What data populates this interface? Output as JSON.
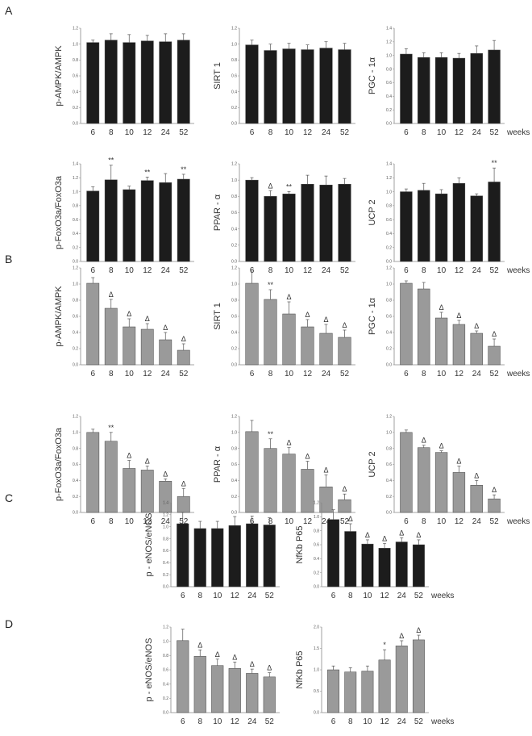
{
  "figure": {
    "panel_letters": [
      "A",
      "B",
      "C",
      "D"
    ],
    "x_unit_label": "weeks",
    "colors": {
      "black_bars": "#1c1c1c",
      "gray_bars": "#9a9a9a",
      "axis": "#888888",
      "error": "#555555"
    }
  },
  "chart_data": [
    {
      "type": "bar",
      "group": "A",
      "ylabel": "p-AMPK/AMPK",
      "categories": [
        "6",
        "8",
        "10",
        "12",
        "24",
        "52"
      ],
      "values": [
        1.02,
        1.05,
        1.02,
        1.04,
        1.03,
        1.05
      ],
      "errors": [
        0.03,
        0.08,
        0.1,
        0.07,
        0.1,
        0.08
      ],
      "annotations": [
        "",
        "",
        "",
        "",
        "",
        ""
      ],
      "ylim": [
        0,
        1.2
      ],
      "yticks": [
        "0.0",
        "0.2",
        "0.4",
        "0.6",
        "0.8",
        "1.0",
        "1.2"
      ],
      "style": "black"
    },
    {
      "type": "bar",
      "group": "A",
      "ylabel": "SIRT 1",
      "categories": [
        "6",
        "8",
        "10",
        "12",
        "24",
        "52"
      ],
      "values": [
        0.99,
        0.92,
        0.94,
        0.93,
        0.95,
        0.93
      ],
      "errors": [
        0.06,
        0.08,
        0.07,
        0.06,
        0.08,
        0.08
      ],
      "annotations": [
        "",
        "",
        "",
        "",
        "",
        ""
      ],
      "ylim": [
        0,
        1.2
      ],
      "yticks": [
        "0.0",
        "0.2",
        "0.4",
        "0.6",
        "0.8",
        "1.0",
        "1.2"
      ],
      "style": "black"
    },
    {
      "type": "bar",
      "group": "A",
      "ylabel": "PGC - 1α",
      "categories": [
        "6",
        "8",
        "10",
        "12",
        "24",
        "52"
      ],
      "values": [
        1.02,
        0.97,
        0.97,
        0.96,
        1.03,
        1.08
      ],
      "errors": [
        0.08,
        0.07,
        0.07,
        0.07,
        0.11,
        0.14
      ],
      "annotations": [
        "",
        "",
        "",
        "",
        "",
        ""
      ],
      "ylim": [
        0,
        1.4
      ],
      "yticks": [
        "0.0",
        "0.2",
        "0.4",
        "0.6",
        "0.8",
        "1.0",
        "1.2",
        "1.4"
      ],
      "style": "black",
      "xunit": true
    },
    {
      "type": "bar",
      "group": "A",
      "ylabel": "p-FoxO3a/FoxO3a",
      "categories": [
        "6",
        "8",
        "10",
        "12",
        "24",
        "52"
      ],
      "values": [
        1.01,
        1.17,
        1.03,
        1.16,
        1.13,
        1.18
      ],
      "errors": [
        0.06,
        0.21,
        0.05,
        0.05,
        0.13,
        0.07
      ],
      "annotations": [
        "",
        "**",
        "",
        "**",
        "",
        "**"
      ],
      "ylim": [
        0,
        1.4
      ],
      "yticks": [
        "0.0",
        "0.2",
        "0.4",
        "0.6",
        "0.8",
        "1.0",
        "1.2",
        "1.4"
      ],
      "style": "black"
    },
    {
      "type": "bar",
      "group": "A",
      "ylabel": "PPAR - α",
      "categories": [
        "6",
        "8",
        "10",
        "12",
        "24",
        "52"
      ],
      "values": [
        1.0,
        0.8,
        0.83,
        0.95,
        0.94,
        0.95
      ],
      "errors": [
        0.03,
        0.07,
        0.03,
        0.11,
        0.11,
        0.07
      ],
      "annotations": [
        "",
        "Δ",
        "**",
        "",
        "",
        ""
      ],
      "ylim": [
        0,
        1.2
      ],
      "yticks": [
        "0.0",
        "0.2",
        "0.4",
        "0.6",
        "0.8",
        "1.0",
        "1.2"
      ],
      "style": "black"
    },
    {
      "type": "bar",
      "group": "A",
      "ylabel": "UCP 2",
      "categories": [
        "6",
        "8",
        "10",
        "12",
        "24",
        "52"
      ],
      "values": [
        1.0,
        1.02,
        0.97,
        1.12,
        0.94,
        1.14
      ],
      "errors": [
        0.04,
        0.1,
        0.06,
        0.08,
        0.03,
        0.2
      ],
      "annotations": [
        "",
        "",
        "",
        "",
        "",
        "**"
      ],
      "ylim": [
        0,
        1.4
      ],
      "yticks": [
        "0.0",
        "0.2",
        "0.4",
        "0.6",
        "0.8",
        "1.0",
        "1.2",
        "1.4"
      ],
      "style": "black",
      "xunit": true
    },
    {
      "type": "bar",
      "group": "B",
      "ylabel": "p-AMPK/AMPK",
      "categories": [
        "6",
        "8",
        "10",
        "12",
        "24",
        "52"
      ],
      "values": [
        1.01,
        0.7,
        0.47,
        0.44,
        0.31,
        0.18
      ],
      "errors": [
        0.07,
        0.11,
        0.1,
        0.07,
        0.09,
        0.08
      ],
      "annotations": [
        "",
        "Δ",
        "Δ",
        "Δ",
        "Δ",
        "Δ"
      ],
      "ylim": [
        0,
        1.2
      ],
      "yticks": [
        "0.0",
        "0.2",
        "0.4",
        "0.6",
        "0.8",
        "1.0",
        "1.2"
      ],
      "style": "gray"
    },
    {
      "type": "bar",
      "group": "B",
      "ylabel": "SIRT 1",
      "categories": [
        "6",
        "8",
        "10",
        "12",
        "24",
        "52"
      ],
      "values": [
        1.01,
        0.81,
        0.63,
        0.47,
        0.39,
        0.34
      ],
      "errors": [
        0.17,
        0.12,
        0.15,
        0.09,
        0.11,
        0.09
      ],
      "annotations": [
        "",
        "**",
        "Δ",
        "Δ",
        "Δ",
        "Δ"
      ],
      "ylim": [
        0,
        1.2
      ],
      "yticks": [
        "0.0",
        "0.2",
        "0.4",
        "0.6",
        "0.8",
        "1.0",
        "1.2"
      ],
      "style": "gray"
    },
    {
      "type": "bar",
      "group": "B",
      "ylabel": "PGC - 1α",
      "categories": [
        "6",
        "8",
        "10",
        "12",
        "24",
        "52"
      ],
      "values": [
        1.01,
        0.94,
        0.58,
        0.5,
        0.39,
        0.23
      ],
      "errors": [
        0.03,
        0.08,
        0.07,
        0.05,
        0.03,
        0.09
      ],
      "annotations": [
        "",
        "",
        "Δ",
        "Δ",
        "Δ",
        "Δ"
      ],
      "ylim": [
        0,
        1.2
      ],
      "yticks": [
        "0.0",
        "0.2",
        "0.4",
        "0.6",
        "0.8",
        "1.0",
        "1.2"
      ],
      "style": "gray",
      "xunit": true
    },
    {
      "type": "bar",
      "group": "B",
      "ylabel": "p-FoxO3a/FoxO3a",
      "categories": [
        "6",
        "8",
        "10",
        "12",
        "24",
        "52"
      ],
      "values": [
        1.0,
        0.89,
        0.55,
        0.53,
        0.39,
        0.2
      ],
      "errors": [
        0.04,
        0.11,
        0.1,
        0.05,
        0.03,
        0.1
      ],
      "annotations": [
        "",
        "**",
        "Δ",
        "Δ",
        "Δ",
        "Δ"
      ],
      "ylim": [
        0,
        1.2
      ],
      "yticks": [
        "0.0",
        "0.2",
        "0.4",
        "0.6",
        "0.8",
        "1.0",
        "1.2"
      ],
      "style": "gray"
    },
    {
      "type": "bar",
      "group": "B",
      "ylabel": "PPAR - α",
      "categories": [
        "6",
        "8",
        "10",
        "12",
        "24",
        "52"
      ],
      "values": [
        1.01,
        0.8,
        0.73,
        0.54,
        0.32,
        0.16
      ],
      "errors": [
        0.14,
        0.12,
        0.08,
        0.1,
        0.15,
        0.07
      ],
      "annotations": [
        "",
        "**",
        "Δ",
        "Δ",
        "Δ",
        "Δ"
      ],
      "ylim": [
        0,
        1.2
      ],
      "yticks": [
        "0.0",
        "0.2",
        "0.4",
        "0.6",
        "0.8",
        "1.0",
        "1.2"
      ],
      "style": "gray"
    },
    {
      "type": "bar",
      "group": "B",
      "ylabel": "UCP 2",
      "categories": [
        "6",
        "8",
        "10",
        "12",
        "24",
        "52"
      ],
      "values": [
        1.0,
        0.81,
        0.75,
        0.5,
        0.34,
        0.17
      ],
      "errors": [
        0.03,
        0.03,
        0.02,
        0.08,
        0.06,
        0.05
      ],
      "annotations": [
        "",
        "Δ",
        "Δ",
        "Δ",
        "Δ",
        "Δ"
      ],
      "ylim": [
        0,
        1.2
      ],
      "yticks": [
        "0.0",
        "0.2",
        "0.4",
        "0.6",
        "0.8",
        "1.0",
        "1.2"
      ],
      "style": "gray",
      "xunit": true
    },
    {
      "type": "bar",
      "group": "C",
      "ylabel": "p - eNOS/eNOS",
      "categories": [
        "6",
        "8",
        "10",
        "12",
        "24",
        "52"
      ],
      "values": [
        1.05,
        0.97,
        0.97,
        1.02,
        1.05,
        1.03
      ],
      "errors": [
        0.19,
        0.12,
        0.12,
        0.15,
        0.13,
        0.12
      ],
      "annotations": [
        "",
        "",
        "",
        "",
        "",
        ""
      ],
      "ylim": [
        0,
        1.4
      ],
      "yticks": [
        "0.0",
        "0.2",
        "0.4",
        "0.6",
        "0.8",
        "1.0",
        "1.2",
        "1.4"
      ],
      "style": "black"
    },
    {
      "type": "bar",
      "group": "C",
      "ylabel": "NfKb P65",
      "categories": [
        "6",
        "8",
        "10",
        "12",
        "24",
        "52"
      ],
      "values": [
        0.96,
        0.79,
        0.61,
        0.55,
        0.64,
        0.6
      ],
      "errors": [
        0.14,
        0.11,
        0.06,
        0.07,
        0.06,
        0.07
      ],
      "annotations": [
        "",
        "Δ",
        "Δ",
        "Δ",
        "Δ",
        "Δ"
      ],
      "ylim": [
        0,
        1.2
      ],
      "yticks": [
        "0.0",
        "0.2",
        "0.4",
        "0.6",
        "0.8",
        "1.0",
        "1.2"
      ],
      "style": "black",
      "xunit": true
    },
    {
      "type": "bar",
      "group": "D",
      "ylabel": "p - eNOS/eNOS",
      "categories": [
        "6",
        "8",
        "10",
        "12",
        "24",
        "52"
      ],
      "values": [
        1.01,
        0.79,
        0.66,
        0.62,
        0.55,
        0.5
      ],
      "errors": [
        0.16,
        0.09,
        0.09,
        0.09,
        0.06,
        0.06
      ],
      "annotations": [
        "",
        "Δ",
        "Δ",
        "Δ",
        "Δ",
        "Δ"
      ],
      "ylim": [
        0,
        1.2
      ],
      "yticks": [
        "0.0",
        "0.2",
        "0.4",
        "0.6",
        "0.8",
        "1.0",
        "1.2"
      ],
      "style": "gray"
    },
    {
      "type": "bar",
      "group": "D",
      "ylabel": "NfKb P65",
      "categories": [
        "6",
        "8",
        "10",
        "12",
        "24",
        "52"
      ],
      "values": [
        1.0,
        0.95,
        0.97,
        1.23,
        1.56,
        1.7
      ],
      "errors": [
        0.09,
        0.1,
        0.12,
        0.24,
        0.12,
        0.11
      ],
      "annotations": [
        "",
        "",
        "",
        "*",
        "Δ",
        "Δ"
      ],
      "ylim": [
        0,
        2.0
      ],
      "yticks": [
        "0.0",
        "0.5",
        "1.0",
        "1.5",
        "2.0"
      ],
      "style": "gray",
      "xunit": true
    }
  ]
}
